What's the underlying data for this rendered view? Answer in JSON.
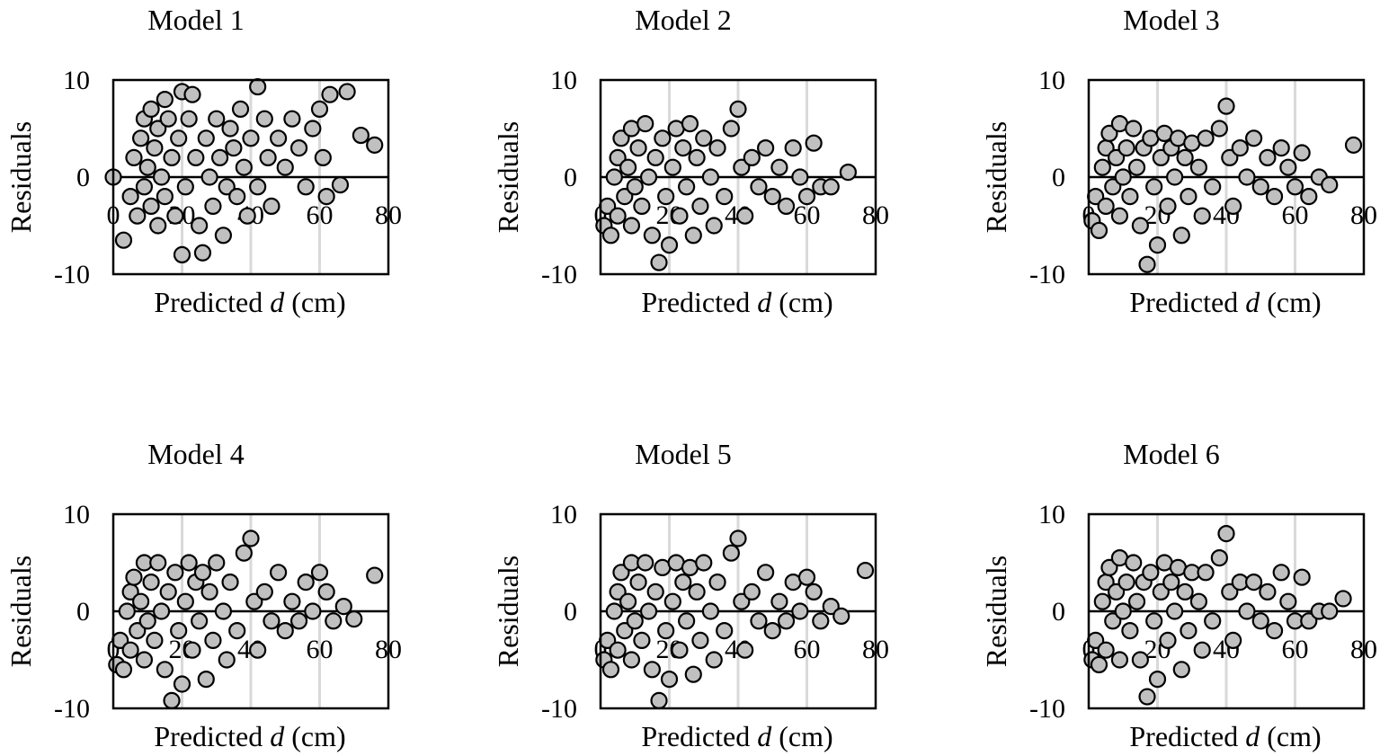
{
  "chart_data": [
    {
      "type": "scatter",
      "title": "Model 1",
      "xlabel": "Predicted d (cm)",
      "xlabel_prefix": "Predicted ",
      "xlabel_var": "d",
      "xlabel_suffix": " (cm)",
      "ylabel": "Residuals",
      "xlim": [
        0,
        80
      ],
      "ylim": [
        -10,
        10
      ],
      "xticks": [
        "0",
        "20",
        "40",
        "60",
        "80"
      ],
      "yticks": [
        "10",
        "0",
        "-10"
      ],
      "grid": "vertical",
      "marker_fill": "#c0c0c0",
      "marker_stroke": "#000000",
      "points": [
        [
          0,
          0
        ],
        [
          3,
          -6.5
        ],
        [
          5,
          -2
        ],
        [
          6,
          2
        ],
        [
          7,
          -4
        ],
        [
          8,
          4
        ],
        [
          9,
          -1
        ],
        [
          9,
          6
        ],
        [
          10,
          1
        ],
        [
          11,
          -3
        ],
        [
          11,
          7
        ],
        [
          12,
          3
        ],
        [
          13,
          -5
        ],
        [
          13,
          5
        ],
        [
          14,
          0
        ],
        [
          15,
          8
        ],
        [
          15,
          -2
        ],
        [
          16,
          6
        ],
        [
          17,
          2
        ],
        [
          18,
          -4
        ],
        [
          19,
          4
        ],
        [
          20,
          8.8
        ],
        [
          20,
          -8
        ],
        [
          21,
          -1
        ],
        [
          22,
          6
        ],
        [
          23,
          8.5
        ],
        [
          24,
          2
        ],
        [
          25,
          -5
        ],
        [
          26,
          -7.8
        ],
        [
          27,
          4
        ],
        [
          28,
          0
        ],
        [
          29,
          -3
        ],
        [
          30,
          6
        ],
        [
          31,
          2
        ],
        [
          32,
          -6
        ],
        [
          33,
          -1
        ],
        [
          34,
          5
        ],
        [
          35,
          3
        ],
        [
          36,
          -2
        ],
        [
          37,
          7
        ],
        [
          38,
          1
        ],
        [
          39,
          -4
        ],
        [
          40,
          4
        ],
        [
          42,
          9.3
        ],
        [
          42,
          -1
        ],
        [
          44,
          6
        ],
        [
          45,
          2
        ],
        [
          46,
          -3
        ],
        [
          48,
          4
        ],
        [
          50,
          1
        ],
        [
          52,
          6
        ],
        [
          54,
          3
        ],
        [
          56,
          -1
        ],
        [
          58,
          5
        ],
        [
          60,
          7
        ],
        [
          61,
          2
        ],
        [
          62,
          -2
        ],
        [
          63,
          8.5
        ],
        [
          66,
          -0.8
        ],
        [
          68,
          8.8
        ],
        [
          72,
          4.3
        ],
        [
          76,
          3.3
        ]
      ]
    },
    {
      "type": "scatter",
      "title": "Model 2",
      "xlabel": "Predicted d (cm)",
      "xlabel_prefix": "Predicted ",
      "xlabel_var": "d",
      "xlabel_suffix": " (cm)",
      "ylabel": "Residuals",
      "xlim": [
        0,
        80
      ],
      "ylim": [
        -10,
        10
      ],
      "xticks": [
        "0",
        "20",
        "40",
        "60",
        "80"
      ],
      "yticks": [
        "10",
        "0",
        "-10"
      ],
      "grid": "vertical",
      "marker_fill": "#c0c0c0",
      "marker_stroke": "#000000",
      "points": [
        [
          1,
          -5
        ],
        [
          2,
          -3
        ],
        [
          3,
          -6
        ],
        [
          4,
          0
        ],
        [
          5,
          2
        ],
        [
          5,
          -4
        ],
        [
          6,
          4
        ],
        [
          7,
          -2
        ],
        [
          8,
          1
        ],
        [
          9,
          5
        ],
        [
          9,
          -5
        ],
        [
          10,
          -1
        ],
        [
          11,
          3
        ],
        [
          12,
          -3
        ],
        [
          13,
          5.5
        ],
        [
          14,
          0
        ],
        [
          15,
          -6
        ],
        [
          16,
          2
        ],
        [
          17,
          -8.8
        ],
        [
          18,
          4
        ],
        [
          19,
          -2
        ],
        [
          20,
          -7
        ],
        [
          21,
          1
        ],
        [
          22,
          5
        ],
        [
          23,
          -4
        ],
        [
          24,
          3
        ],
        [
          25,
          -1
        ],
        [
          26,
          5.5
        ],
        [
          27,
          -6
        ],
        [
          28,
          2
        ],
        [
          29,
          -3
        ],
        [
          30,
          4
        ],
        [
          32,
          0
        ],
        [
          33,
          -5
        ],
        [
          34,
          3
        ],
        [
          36,
          -2
        ],
        [
          38,
          5
        ],
        [
          40,
          7
        ],
        [
          41,
          1
        ],
        [
          42,
          -4
        ],
        [
          44,
          2
        ],
        [
          46,
          -1
        ],
        [
          48,
          3
        ],
        [
          50,
          -2
        ],
        [
          52,
          1
        ],
        [
          54,
          -3
        ],
        [
          56,
          3
        ],
        [
          58,
          0
        ],
        [
          60,
          -2
        ],
        [
          62,
          3.5
        ],
        [
          64,
          -1
        ],
        [
          67,
          -1
        ],
        [
          72,
          0.5
        ]
      ]
    },
    {
      "type": "scatter",
      "title": "Model 3",
      "xlabel": "Predicted d (cm)",
      "xlabel_prefix": "Predicted ",
      "xlabel_var": "d",
      "xlabel_suffix": " (cm)",
      "ylabel": "Residuals",
      "xlim": [
        0,
        80
      ],
      "ylim": [
        -10,
        10
      ],
      "xticks": [
        "0",
        "20",
        "40",
        "60",
        "80"
      ],
      "yticks": [
        "10",
        "0",
        "-10"
      ],
      "grid": "vertical",
      "marker_fill": "#c0c0c0",
      "marker_stroke": "#000000",
      "points": [
        [
          1,
          -4.5
        ],
        [
          2,
          -2
        ],
        [
          3,
          -5.5
        ],
        [
          4,
          1
        ],
        [
          5,
          3
        ],
        [
          5,
          -3
        ],
        [
          6,
          4.5
        ],
        [
          7,
          -1
        ],
        [
          8,
          2
        ],
        [
          9,
          5.5
        ],
        [
          9,
          -4
        ],
        [
          10,
          0
        ],
        [
          11,
          3
        ],
        [
          12,
          -2
        ],
        [
          13,
          5
        ],
        [
          14,
          1
        ],
        [
          15,
          -5
        ],
        [
          16,
          3
        ],
        [
          17,
          -9
        ],
        [
          18,
          4
        ],
        [
          19,
          -1
        ],
        [
          20,
          -7
        ],
        [
          21,
          2
        ],
        [
          22,
          4.5
        ],
        [
          23,
          -3
        ],
        [
          24,
          3
        ],
        [
          25,
          0
        ],
        [
          26,
          4
        ],
        [
          27,
          -6
        ],
        [
          28,
          2
        ],
        [
          29,
          -2
        ],
        [
          30,
          3.5
        ],
        [
          32,
          1
        ],
        [
          33,
          -4
        ],
        [
          34,
          4
        ],
        [
          36,
          -1
        ],
        [
          38,
          5
        ],
        [
          40,
          7.3
        ],
        [
          41,
          2
        ],
        [
          42,
          -3
        ],
        [
          44,
          3
        ],
        [
          46,
          0
        ],
        [
          48,
          4
        ],
        [
          50,
          -1
        ],
        [
          52,
          2
        ],
        [
          54,
          -2
        ],
        [
          56,
          3
        ],
        [
          58,
          1
        ],
        [
          60,
          -1
        ],
        [
          62,
          2.5
        ],
        [
          64,
          -2
        ],
        [
          67,
          0
        ],
        [
          70,
          -0.8
        ],
        [
          77,
          3.3
        ]
      ]
    },
    {
      "type": "scatter",
      "title": "Model 4",
      "xlabel": "Predicted d (cm)",
      "xlabel_prefix": "Predicted ",
      "xlabel_var": "d",
      "xlabel_suffix": " (cm)",
      "ylabel": "Residuals",
      "xlim": [
        0,
        80
      ],
      "ylim": [
        -10,
        10
      ],
      "xticks": [
        "0",
        "20",
        "40",
        "60",
        "80"
      ],
      "yticks": [
        "10",
        "0",
        "-10"
      ],
      "grid": "vertical",
      "marker_fill": "#c0c0c0",
      "marker_stroke": "#000000",
      "points": [
        [
          1,
          -5.5
        ],
        [
          2,
          -3
        ],
        [
          3,
          -6
        ],
        [
          4,
          0
        ],
        [
          5,
          2
        ],
        [
          5,
          -4
        ],
        [
          6,
          3.5
        ],
        [
          7,
          -2
        ],
        [
          8,
          1
        ],
        [
          9,
          5
        ],
        [
          9,
          -5
        ],
        [
          10,
          -1
        ],
        [
          11,
          3
        ],
        [
          12,
          -3
        ],
        [
          13,
          5
        ],
        [
          14,
          0
        ],
        [
          15,
          -6
        ],
        [
          16,
          2
        ],
        [
          17,
          -9.2
        ],
        [
          18,
          4
        ],
        [
          19,
          -2
        ],
        [
          20,
          -7.5
        ],
        [
          21,
          1
        ],
        [
          22,
          5
        ],
        [
          23,
          -4
        ],
        [
          24,
          3
        ],
        [
          25,
          -1
        ],
        [
          26,
          4
        ],
        [
          27,
          -7
        ],
        [
          28,
          2
        ],
        [
          29,
          -3
        ],
        [
          30,
          5
        ],
        [
          32,
          0
        ],
        [
          33,
          -5
        ],
        [
          34,
          3
        ],
        [
          36,
          -2
        ],
        [
          38,
          6
        ],
        [
          40,
          7.5
        ],
        [
          41,
          1
        ],
        [
          42,
          -4
        ],
        [
          44,
          2
        ],
        [
          46,
          -1
        ],
        [
          48,
          4
        ],
        [
          50,
          -2
        ],
        [
          52,
          1
        ],
        [
          54,
          -1
        ],
        [
          56,
          3
        ],
        [
          58,
          0
        ],
        [
          60,
          4
        ],
        [
          62,
          2
        ],
        [
          64,
          -1
        ],
        [
          67,
          0.5
        ],
        [
          70,
          -0.8
        ],
        [
          76,
          3.7
        ]
      ]
    },
    {
      "type": "scatter",
      "title": "Model 5",
      "xlabel": "Predicted d (cm)",
      "xlabel_prefix": "Predicted ",
      "xlabel_var": "d",
      "xlabel_suffix": " (cm)",
      "ylabel": "Residuals",
      "xlim": [
        0,
        80
      ],
      "ylim": [
        -10,
        10
      ],
      "xticks": [
        "0",
        "20",
        "40",
        "60",
        "80"
      ],
      "yticks": [
        "10",
        "0",
        "-10"
      ],
      "grid": "vertical",
      "marker_fill": "#c0c0c0",
      "marker_stroke": "#000000",
      "points": [
        [
          1,
          -5
        ],
        [
          2,
          -3
        ],
        [
          3,
          -6
        ],
        [
          4,
          0
        ],
        [
          5,
          2
        ],
        [
          5,
          -4
        ],
        [
          6,
          4
        ],
        [
          7,
          -2
        ],
        [
          8,
          1
        ],
        [
          9,
          5
        ],
        [
          9,
          -5
        ],
        [
          10,
          -1
        ],
        [
          11,
          3
        ],
        [
          12,
          -3
        ],
        [
          13,
          5
        ],
        [
          14,
          0
        ],
        [
          15,
          -6
        ],
        [
          16,
          2
        ],
        [
          17,
          -9.2
        ],
        [
          18,
          4.5
        ],
        [
          19,
          -2
        ],
        [
          20,
          -7
        ],
        [
          21,
          1
        ],
        [
          22,
          5
        ],
        [
          23,
          -4
        ],
        [
          24,
          3
        ],
        [
          25,
          -1
        ],
        [
          26,
          4.5
        ],
        [
          27,
          -6.5
        ],
        [
          28,
          2
        ],
        [
          29,
          -3
        ],
        [
          30,
          5
        ],
        [
          32,
          0
        ],
        [
          33,
          -5
        ],
        [
          34,
          3
        ],
        [
          36,
          -2
        ],
        [
          38,
          6
        ],
        [
          40,
          7.5
        ],
        [
          41,
          1
        ],
        [
          42,
          -4
        ],
        [
          44,
          2
        ],
        [
          46,
          -1
        ],
        [
          48,
          4
        ],
        [
          50,
          -2
        ],
        [
          52,
          1
        ],
        [
          54,
          -1
        ],
        [
          56,
          3
        ],
        [
          58,
          0
        ],
        [
          60,
          3.5
        ],
        [
          62,
          2
        ],
        [
          64,
          -1
        ],
        [
          67,
          0.5
        ],
        [
          70,
          -0.5
        ],
        [
          77,
          4.2
        ]
      ]
    },
    {
      "type": "scatter",
      "title": "Model 6",
      "xlabel": "Predicted d (cm)",
      "xlabel_prefix": "Predicted ",
      "xlabel_var": "d",
      "xlabel_suffix": " (cm)",
      "ylabel": "Residuals",
      "xlim": [
        0,
        80
      ],
      "ylim": [
        -10,
        10
      ],
      "xticks": [
        "0",
        "20",
        "40",
        "60",
        "80"
      ],
      "yticks": [
        "10",
        "0",
        "-10"
      ],
      "grid": "vertical",
      "marker_fill": "#c0c0c0",
      "marker_stroke": "#000000",
      "points": [
        [
          1,
          -5
        ],
        [
          2,
          -3
        ],
        [
          3,
          -5.5
        ],
        [
          4,
          1
        ],
        [
          5,
          3
        ],
        [
          5,
          -4
        ],
        [
          6,
          4.5
        ],
        [
          7,
          -1
        ],
        [
          8,
          2
        ],
        [
          9,
          5.5
        ],
        [
          9,
          -5
        ],
        [
          10,
          0
        ],
        [
          11,
          3
        ],
        [
          12,
          -2
        ],
        [
          13,
          5
        ],
        [
          14,
          1
        ],
        [
          15,
          -5
        ],
        [
          16,
          3
        ],
        [
          17,
          -8.8
        ],
        [
          18,
          4
        ],
        [
          19,
          -1
        ],
        [
          20,
          -7
        ],
        [
          21,
          2
        ],
        [
          22,
          5
        ],
        [
          23,
          -3
        ],
        [
          24,
          3
        ],
        [
          25,
          0
        ],
        [
          26,
          4.5
        ],
        [
          27,
          -6
        ],
        [
          28,
          2
        ],
        [
          29,
          -2
        ],
        [
          30,
          4
        ],
        [
          32,
          1
        ],
        [
          33,
          -4
        ],
        [
          34,
          4
        ],
        [
          36,
          -1
        ],
        [
          38,
          5.5
        ],
        [
          40,
          8
        ],
        [
          41,
          2
        ],
        [
          42,
          -3
        ],
        [
          44,
          3
        ],
        [
          46,
          0
        ],
        [
          48,
          3
        ],
        [
          50,
          -1
        ],
        [
          52,
          2
        ],
        [
          54,
          -2
        ],
        [
          56,
          4
        ],
        [
          58,
          1
        ],
        [
          60,
          -1
        ],
        [
          62,
          3.5
        ],
        [
          64,
          -1
        ],
        [
          67,
          0
        ],
        [
          70,
          0
        ],
        [
          74,
          1.3
        ]
      ]
    }
  ]
}
